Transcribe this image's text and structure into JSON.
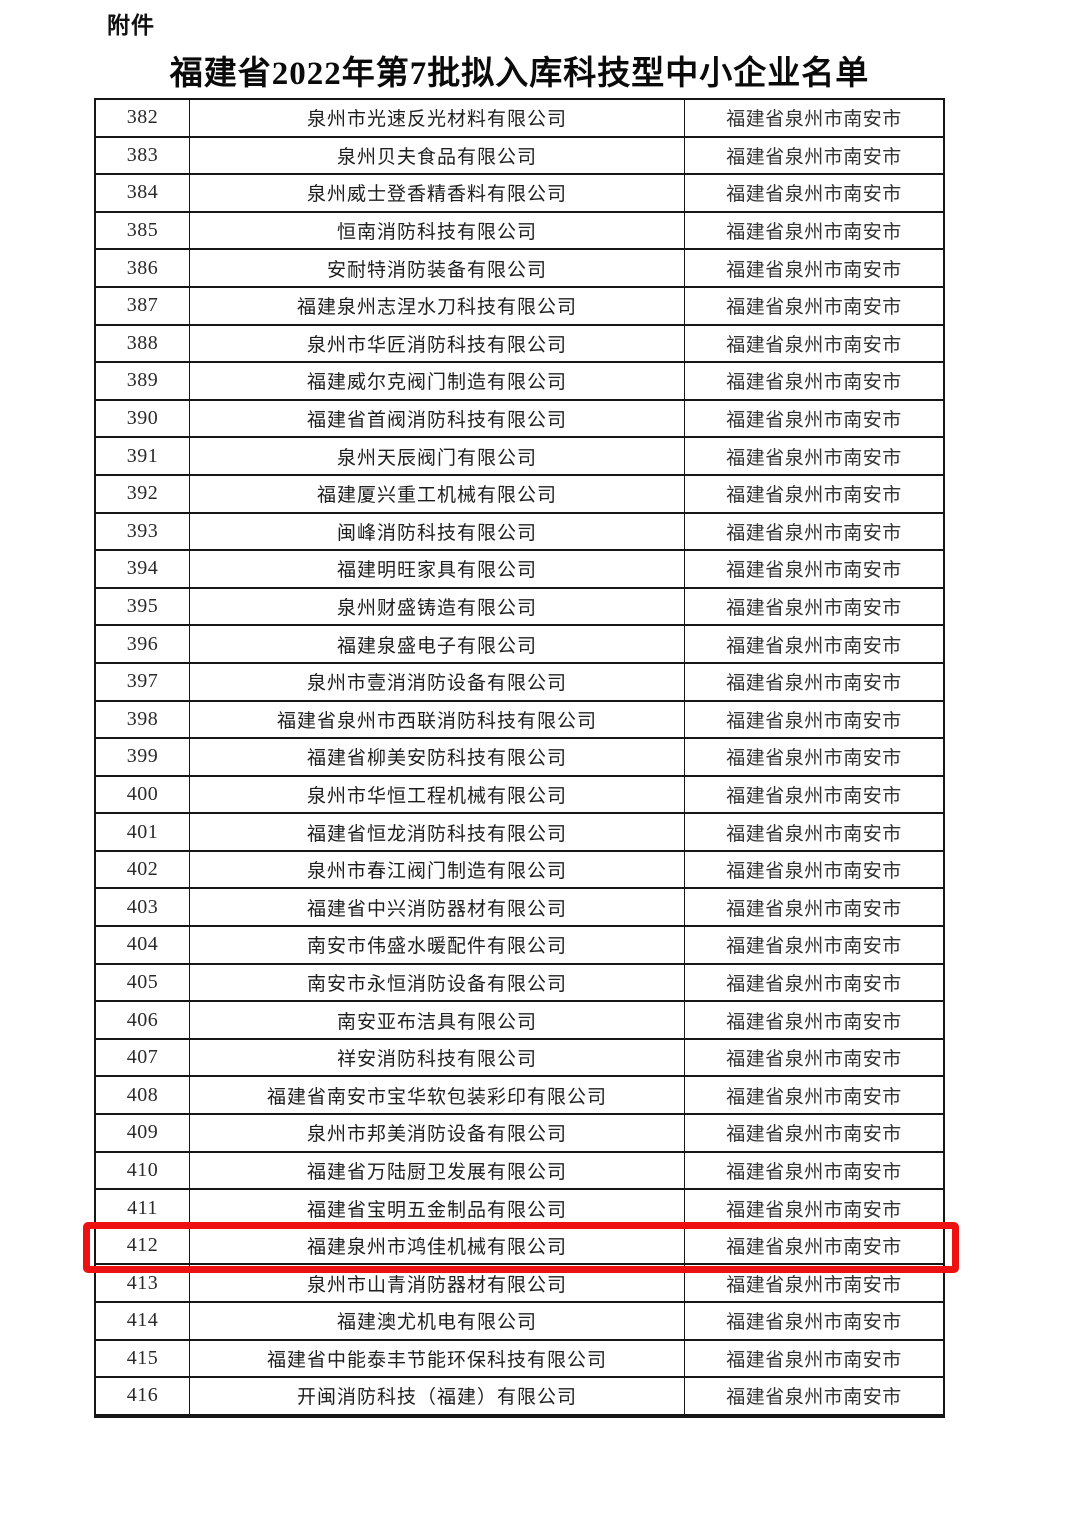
{
  "page": {
    "attachment_label": "附件",
    "title": "福建省2022年第7批拟入库科技型中小企业名单"
  },
  "table": {
    "highlight_row_number": "412",
    "highlight_color": "#ee1111",
    "rows": [
      {
        "number": "382",
        "company": "泉州市光速反光材料有限公司",
        "location": "福建省泉州市南安市"
      },
      {
        "number": "383",
        "company": "泉州贝夫食品有限公司",
        "location": "福建省泉州市南安市"
      },
      {
        "number": "384",
        "company": "泉州威士登香精香料有限公司",
        "location": "福建省泉州市南安市"
      },
      {
        "number": "385",
        "company": "恒南消防科技有限公司",
        "location": "福建省泉州市南安市"
      },
      {
        "number": "386",
        "company": "安耐特消防装备有限公司",
        "location": "福建省泉州市南安市"
      },
      {
        "number": "387",
        "company": "福建泉州志涅水刀科技有限公司",
        "location": "福建省泉州市南安市"
      },
      {
        "number": "388",
        "company": "泉州市华匠消防科技有限公司",
        "location": "福建省泉州市南安市"
      },
      {
        "number": "389",
        "company": "福建威尔克阀门制造有限公司",
        "location": "福建省泉州市南安市"
      },
      {
        "number": "390",
        "company": "福建省首阀消防科技有限公司",
        "location": "福建省泉州市南安市"
      },
      {
        "number": "391",
        "company": "泉州天辰阀门有限公司",
        "location": "福建省泉州市南安市"
      },
      {
        "number": "392",
        "company": "福建厦兴重工机械有限公司",
        "location": "福建省泉州市南安市"
      },
      {
        "number": "393",
        "company": "闽峰消防科技有限公司",
        "location": "福建省泉州市南安市"
      },
      {
        "number": "394",
        "company": "福建明旺家具有限公司",
        "location": "福建省泉州市南安市"
      },
      {
        "number": "395",
        "company": "泉州财盛铸造有限公司",
        "location": "福建省泉州市南安市"
      },
      {
        "number": "396",
        "company": "福建泉盛电子有限公司",
        "location": "福建省泉州市南安市"
      },
      {
        "number": "397",
        "company": "泉州市壹消消防设备有限公司",
        "location": "福建省泉州市南安市"
      },
      {
        "number": "398",
        "company": "福建省泉州市西联消防科技有限公司",
        "location": "福建省泉州市南安市"
      },
      {
        "number": "399",
        "company": "福建省柳美安防科技有限公司",
        "location": "福建省泉州市南安市"
      },
      {
        "number": "400",
        "company": "泉州市华恒工程机械有限公司",
        "location": "福建省泉州市南安市"
      },
      {
        "number": "401",
        "company": "福建省恒龙消防科技有限公司",
        "location": "福建省泉州市南安市"
      },
      {
        "number": "402",
        "company": "泉州市春江阀门制造有限公司",
        "location": "福建省泉州市南安市"
      },
      {
        "number": "403",
        "company": "福建省中兴消防器材有限公司",
        "location": "福建省泉州市南安市"
      },
      {
        "number": "404",
        "company": "南安市伟盛水暖配件有限公司",
        "location": "福建省泉州市南安市"
      },
      {
        "number": "405",
        "company": "南安市永恒消防设备有限公司",
        "location": "福建省泉州市南安市"
      },
      {
        "number": "406",
        "company": "南安亚布洁具有限公司",
        "location": "福建省泉州市南安市"
      },
      {
        "number": "407",
        "company": "祥安消防科技有限公司",
        "location": "福建省泉州市南安市"
      },
      {
        "number": "408",
        "company": "福建省南安市宝华软包装彩印有限公司",
        "location": "福建省泉州市南安市"
      },
      {
        "number": "409",
        "company": "泉州市邦美消防设备有限公司",
        "location": "福建省泉州市南安市"
      },
      {
        "number": "410",
        "company": "福建省万陆厨卫发展有限公司",
        "location": "福建省泉州市南安市"
      },
      {
        "number": "411",
        "company": "福建省宝明五金制品有限公司",
        "location": "福建省泉州市南安市"
      },
      {
        "number": "412",
        "company": "福建泉州市鸿佳机械有限公司",
        "location": "福建省泉州市南安市"
      },
      {
        "number": "413",
        "company": "泉州市山青消防器材有限公司",
        "location": "福建省泉州市南安市"
      },
      {
        "number": "414",
        "company": "福建澳尤机电有限公司",
        "location": "福建省泉州市南安市"
      },
      {
        "number": "415",
        "company": "福建省中能泰丰节能环保科技有限公司",
        "location": "福建省泉州市南安市"
      },
      {
        "number": "416",
        "company": "开闽消防科技（福建）有限公司",
        "location": "福建省泉州市南安市"
      }
    ]
  }
}
